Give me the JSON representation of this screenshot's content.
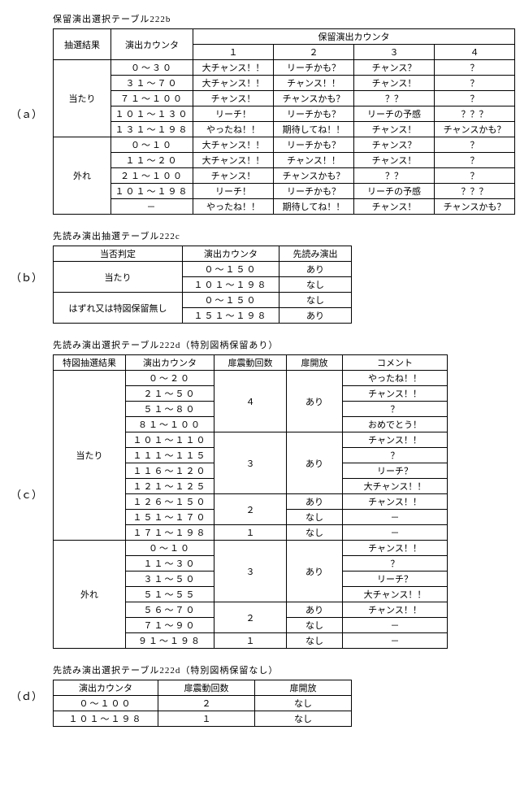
{
  "tableA": {
    "title": "保留演出選択テーブル222b",
    "label": "（ａ）",
    "header1": "抽選結果",
    "header2": "演出カウンタ",
    "header3": "保留演出カウンタ",
    "subheaders": [
      "１",
      "２",
      "３",
      "４"
    ],
    "groups": [
      {
        "result": "当たり",
        "rows": [
          {
            "counter": "０～３０",
            "vals": [
              "大チャンス！！",
              "リーチかも？",
              "チャンス？",
              "？"
            ]
          },
          {
            "counter": "３１～７０",
            "vals": [
              "大チャンス！！",
              "チャンス！！",
              "チャンス！",
              "？"
            ]
          },
          {
            "counter": "７１～１００",
            "vals": [
              "チャンス！",
              "チャンスかも？",
              "？？",
              "？"
            ]
          },
          {
            "counter": "１０１～１３０",
            "vals": [
              "リーチ！",
              "リーチかも？",
              "リーチの予感",
              "？？？"
            ]
          },
          {
            "counter": "１３１～１９８",
            "vals": [
              "やったね！！",
              "期待してね！！",
              "チャンス！",
              "チャンスかも？"
            ]
          }
        ]
      },
      {
        "result": "外れ",
        "rows": [
          {
            "counter": "０～１０",
            "vals": [
              "大チャンス！！",
              "リーチかも？",
              "チャンス？",
              "？"
            ]
          },
          {
            "counter": "１１～２０",
            "vals": [
              "大チャンス！！",
              "チャンス！！",
              "チャンス！",
              "？"
            ]
          },
          {
            "counter": "２１～１００",
            "vals": [
              "チャンス！",
              "チャンスかも？",
              "？？",
              "？"
            ]
          },
          {
            "counter": "１０１～１９８",
            "vals": [
              "リーチ！",
              "リーチかも？",
              "リーチの予感",
              "？？？"
            ]
          },
          {
            "counter": "－",
            "vals": [
              "やったね！！",
              "期待してね！！",
              "チャンス！",
              "チャンスかも？"
            ]
          }
        ]
      }
    ]
  },
  "tableB": {
    "title": "先読み演出抽選テーブル222c",
    "label": "（ｂ）",
    "header1": "当否判定",
    "header2": "演出カウンタ",
    "header3": "先読み演出",
    "groups": [
      {
        "result": "当たり",
        "rows": [
          {
            "counter": "０～１５０",
            "val": "あり"
          },
          {
            "counter": "１０１～１９８",
            "val": "なし"
          }
        ]
      },
      {
        "result": "はずれ又は特図保留無し",
        "rows": [
          {
            "counter": "０～１５０",
            "val": "なし"
          },
          {
            "counter": "１５１～１９８",
            "val": "あり"
          }
        ]
      }
    ]
  },
  "tableC": {
    "title": "先読み演出選択テーブル222d（特別図柄保留あり）",
    "label": "（ｃ）",
    "headers": [
      "特図抽選結果",
      "演出カウンタ",
      "扉震動回数",
      "扉開放",
      "コメント"
    ],
    "groups": [
      {
        "result": "当たり",
        "sections": [
          {
            "shake": "４",
            "open": "あり",
            "rows": [
              {
                "counter": "０～２０",
                "comment": "やったね！！"
              },
              {
                "counter": "２１～５０",
                "comment": "チャンス！！"
              },
              {
                "counter": "５１～８０",
                "comment": "？"
              },
              {
                "counter": "８１～１００",
                "comment": "おめでとう！"
              }
            ]
          },
          {
            "shake": "３",
            "open": "あり",
            "rows": [
              {
                "counter": "１０１～１１０",
                "comment": "チャンス！！"
              },
              {
                "counter": "１１１～１１５",
                "comment": "？"
              },
              {
                "counter": "１１６～１２０",
                "comment": "リーチ？"
              },
              {
                "counter": "１２１～１２５",
                "comment": "大チャンス！！"
              }
            ]
          },
          {
            "shake": "２",
            "rows": [
              {
                "counter": "１２６～１５０",
                "open": "あり",
                "comment": "チャンス！！"
              },
              {
                "counter": "１５１～１７０",
                "open": "なし",
                "comment": "－"
              }
            ]
          },
          {
            "shake": "１",
            "rows": [
              {
                "counter": "１７１～１９８",
                "open": "なし",
                "comment": "－"
              }
            ]
          }
        ]
      },
      {
        "result": "外れ",
        "sections": [
          {
            "shake": "３",
            "open": "あり",
            "rows": [
              {
                "counter": "０～１０",
                "comment": "チャンス！！"
              },
              {
                "counter": "１１～３０",
                "comment": "？"
              },
              {
                "counter": "３１～５０",
                "comment": "リーチ？"
              },
              {
                "counter": "５１～５５",
                "comment": "大チャンス！！"
              }
            ]
          },
          {
            "shake": "２",
            "rows": [
              {
                "counter": "５６～７０",
                "open": "あり",
                "comment": "チャンス！！"
              },
              {
                "counter": "７１～９０",
                "open": "なし",
                "comment": "－"
              }
            ]
          },
          {
            "shake": "１",
            "rows": [
              {
                "counter": "９１～１９８",
                "open": "なし",
                "comment": "－"
              }
            ]
          }
        ]
      }
    ]
  },
  "tableD": {
    "title": "先読み演出選択テーブル222d（特別図柄保留なし）",
    "label": "（ｄ）",
    "headers": [
      "演出カウンタ",
      "扉震動回数",
      "扉開放"
    ],
    "rows": [
      {
        "counter": "０～１００",
        "shake": "２",
        "open": "なし"
      },
      {
        "counter": "１０１～１９８",
        "shake": "１",
        "open": "なし"
      }
    ]
  }
}
